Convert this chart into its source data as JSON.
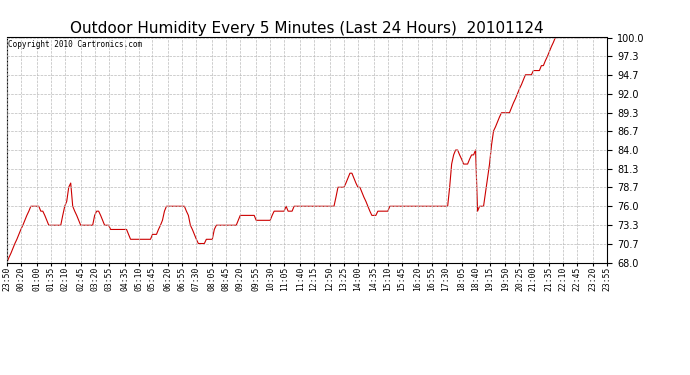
{
  "title": "Outdoor Humidity Every 5 Minutes (Last 24 Hours)  20101124",
  "copyright": "Copyright 2010 Cartronics.com",
  "ytick_vals": [
    68.0,
    70.7,
    73.3,
    76.0,
    78.7,
    81.3,
    84.0,
    86.7,
    89.3,
    92.0,
    94.7,
    97.3,
    100.0
  ],
  "ylim": [
    68.0,
    100.0
  ],
  "line_color": "#cc0000",
  "bg_color": "#ffffff",
  "plot_bg": "#ffffff",
  "title_fontsize": 11,
  "copyright_fontsize": 5.5,
  "xtick_fontsize": 5.8,
  "ytick_fontsize": 7,
  "xtick_labels": [
    "23:50",
    "00:20",
    "01:00",
    "01:35",
    "02:10",
    "02:45",
    "03:20",
    "03:55",
    "04:35",
    "05:10",
    "05:45",
    "06:20",
    "06:55",
    "07:30",
    "08:05",
    "08:45",
    "09:20",
    "09:55",
    "10:30",
    "11:05",
    "11:40",
    "12:15",
    "12:50",
    "13:25",
    "14:00",
    "14:35",
    "15:10",
    "15:45",
    "16:20",
    "16:55",
    "17:30",
    "18:05",
    "18:40",
    "19:15",
    "19:50",
    "20:25",
    "21:00",
    "21:35",
    "22:10",
    "22:45",
    "23:20",
    "23:55"
  ],
  "humidity_data": [
    68.0,
    68.7,
    69.3,
    70.0,
    70.7,
    71.3,
    72.0,
    72.7,
    73.3,
    74.0,
    74.7,
    75.3,
    76.0,
    76.0,
    76.0,
    76.0,
    76.0,
    75.3,
    75.3,
    74.7,
    74.0,
    73.3,
    73.3,
    73.3,
    73.3,
    73.3,
    73.3,
    73.3,
    74.7,
    76.0,
    76.7,
    78.7,
    79.3,
    76.0,
    75.3,
    74.7,
    74.0,
    73.3,
    73.3,
    73.3,
    73.3,
    73.3,
    73.3,
    73.3,
    74.7,
    75.3,
    75.3,
    74.7,
    74.0,
    73.3,
    73.3,
    73.3,
    72.7,
    72.7,
    72.7,
    72.7,
    72.7,
    72.7,
    72.7,
    72.7,
    72.7,
    72.0,
    71.3,
    71.3,
    71.3,
    71.3,
    71.3,
    71.3,
    71.3,
    71.3,
    71.3,
    71.3,
    71.3,
    72.0,
    72.0,
    72.0,
    72.7,
    73.3,
    74.0,
    75.3,
    76.0,
    76.0,
    76.0,
    76.0,
    76.0,
    76.0,
    76.0,
    76.0,
    76.0,
    76.0,
    75.3,
    74.7,
    73.3,
    72.7,
    72.0,
    71.3,
    70.7,
    70.7,
    70.7,
    70.7,
    71.3,
    71.3,
    71.3,
    71.3,
    72.7,
    73.3,
    73.3,
    73.3,
    73.3,
    73.3,
    73.3,
    73.3,
    73.3,
    73.3,
    73.3,
    73.3,
    74.0,
    74.7,
    74.7,
    74.7,
    74.7,
    74.7,
    74.7,
    74.7,
    74.7,
    74.0,
    74.0,
    74.0,
    74.0,
    74.0,
    74.0,
    74.0,
    74.0,
    74.7,
    75.3,
    75.3,
    75.3,
    75.3,
    75.3,
    75.3,
    76.0,
    75.3,
    75.3,
    75.3,
    76.0,
    76.0,
    76.0,
    76.0,
    76.0,
    76.0,
    76.0,
    76.0,
    76.0,
    76.0,
    76.0,
    76.0,
    76.0,
    76.0,
    76.0,
    76.0,
    76.0,
    76.0,
    76.0,
    76.0,
    76.0,
    77.3,
    78.7,
    78.7,
    78.7,
    78.7,
    79.3,
    80.0,
    80.7,
    80.7,
    80.0,
    79.3,
    78.7,
    78.7,
    78.0,
    77.3,
    76.7,
    76.0,
    75.3,
    74.7,
    74.7,
    74.7,
    75.3,
    75.3,
    75.3,
    75.3,
    75.3,
    75.3,
    76.0,
    76.0,
    76.0,
    76.0,
    76.0,
    76.0,
    76.0,
    76.0,
    76.0,
    76.0,
    76.0,
    76.0,
    76.0,
    76.0,
    76.0,
    76.0,
    76.0,
    76.0,
    76.0,
    76.0,
    76.0,
    76.0,
    76.0,
    76.0,
    76.0,
    76.0,
    76.0,
    76.0,
    76.0,
    76.0,
    78.7,
    82.0,
    83.3,
    84.0,
    84.0,
    83.3,
    82.7,
    82.0,
    82.0,
    82.0,
    82.7,
    83.3,
    83.3,
    84.0,
    75.3,
    76.0,
    76.0,
    76.0,
    78.0,
    80.0,
    82.0,
    84.7,
    86.7,
    87.3,
    88.0,
    88.7,
    89.3,
    89.3,
    89.3,
    89.3,
    89.3,
    90.0,
    90.7,
    91.3,
    92.0,
    92.7,
    93.3,
    94.0,
    94.7,
    94.7,
    94.7,
    94.7,
    95.3,
    95.3,
    95.3,
    95.3,
    96.0,
    96.0,
    96.7,
    97.3,
    98.0,
    98.7,
    99.3,
    100.0,
    100.0,
    100.0,
    100.0,
    100.0,
    100.0,
    100.0,
    100.0,
    100.0,
    100.0,
    100.0,
    100.0,
    100.0,
    100.0,
    100.0,
    100.0,
    100.0,
    100.0,
    100.0,
    100.0,
    100.0,
    100.0,
    100.0,
    100.0,
    100.0,
    100.0,
    100.0
  ]
}
